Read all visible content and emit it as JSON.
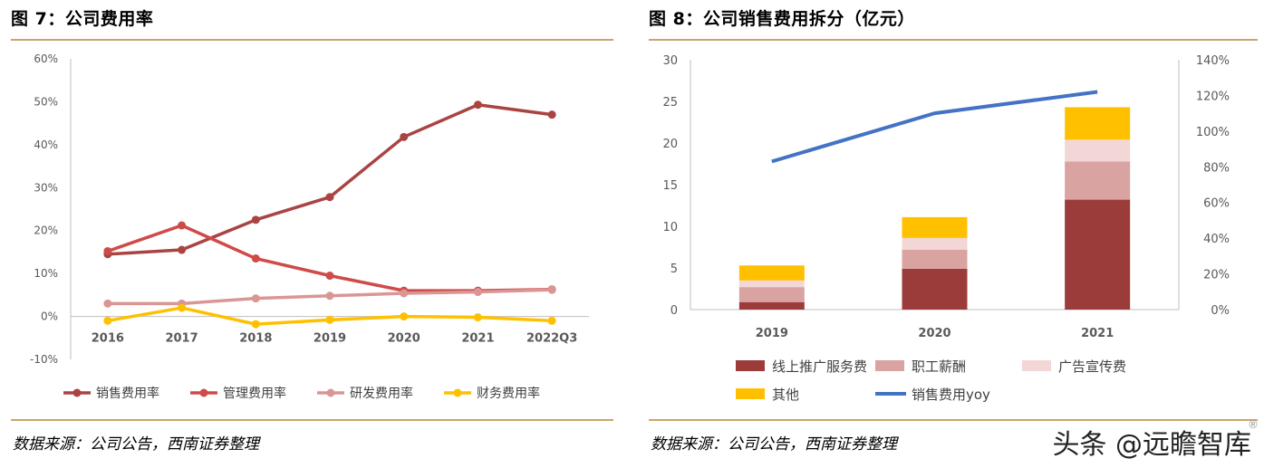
{
  "left_panel": {
    "title": "图 7：公司费用率",
    "source": "数据来源：公司公告，西南证券整理"
  },
  "right_panel": {
    "title": "图 8：公司销售费用拆分（亿元）",
    "source": "数据来源：公司公告，西南证券整理"
  },
  "watermark": {
    "text": "头条 @远瞻智库",
    "mark": "®"
  },
  "chart_data": [
    {
      "type": "line",
      "title": "",
      "x": [
        "2016",
        "2017",
        "2018",
        "2019",
        "2020",
        "2021",
        "2022Q3"
      ],
      "yticks": [
        "-10%",
        "0%",
        "10%",
        "20%",
        "30%",
        "40%",
        "50%",
        "60%"
      ],
      "ylim": [
        -0.1,
        0.6
      ],
      "grid": false,
      "legend": "bottom",
      "series": [
        {
          "name": "销售费用率",
          "color": "#a94442",
          "values": [
            0.145,
            0.155,
            0.225,
            0.278,
            0.418,
            0.493,
            0.47
          ]
        },
        {
          "name": "管理费用率",
          "color": "#cf4b48",
          "values": [
            0.152,
            0.212,
            0.135,
            0.095,
            0.06,
            0.06,
            0.063
          ]
        },
        {
          "name": "研发费用率",
          "color": "#d99694",
          "values": [
            0.03,
            0.03,
            0.042,
            0.048,
            0.054,
            0.057,
            0.062
          ]
        },
        {
          "name": "财务费用率",
          "color": "#ffc000",
          "values": [
            -0.01,
            0.02,
            -0.018,
            -0.008,
            0.0,
            -0.002,
            -0.01
          ]
        }
      ]
    },
    {
      "type": "bar",
      "title": "",
      "categories": [
        "2019",
        "2020",
        "2021"
      ],
      "yticks_left": [
        "0",
        "5",
        "10",
        "15",
        "20",
        "25",
        "30"
      ],
      "ylim_left": [
        0,
        30
      ],
      "yticks_right": [
        "0%",
        "20%",
        "40%",
        "60%",
        "80%",
        "100%",
        "120%",
        "140%"
      ],
      "ylim_right": [
        0,
        1.4
      ],
      "grid": false,
      "legend": "bottom",
      "stacked": true,
      "series": [
        {
          "name": "线上推广服务费",
          "color": "#9b3b3a",
          "values": [
            0.9,
            4.9,
            13.2
          ]
        },
        {
          "name": "职工薪酬",
          "color": "#d9a3a2",
          "values": [
            1.8,
            2.3,
            4.6
          ]
        },
        {
          "name": "广告宣传费",
          "color": "#f2d7d6",
          "values": [
            0.8,
            1.4,
            2.6
          ]
        },
        {
          "name": "其他",
          "color": "#ffc000",
          "values": [
            1.8,
            2.5,
            3.9
          ]
        }
      ],
      "line_series": [
        {
          "name": "销售费用yoy",
          "color": "#4472c4",
          "axis": "right",
          "values": [
            0.83,
            1.1,
            1.22
          ]
        }
      ]
    }
  ]
}
